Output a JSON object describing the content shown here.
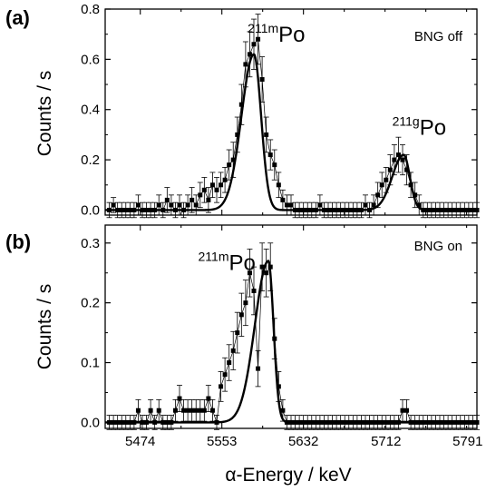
{
  "chart_data": [
    {
      "type": "line",
      "panel_label": "(a)",
      "status_label": "BNG off",
      "ylabel": "Counts / s",
      "xlim": [
        5440,
        5800
      ],
      "ylim": [
        -0.02,
        0.8
      ],
      "yticks": [
        "0.0",
        "0.2",
        "0.4",
        "0.6",
        "0.8"
      ],
      "grid": false,
      "peak_annotations": [
        {
          "sup": "211m",
          "main": "Po",
          "x": 5578,
          "y": 0.67
        },
        {
          "sup": "211g",
          "main": "Po",
          "x": 5718,
          "y": 0.3
        }
      ],
      "series": [
        {
          "style": "data-with-error-bars",
          "error": 0.02,
          "x": [
            5444,
            5448,
            5452,
            5456,
            5460,
            5464,
            5468,
            5472,
            5476,
            5480,
            5484,
            5488,
            5492,
            5496,
            5500,
            5504,
            5508,
            5512,
            5516,
            5520,
            5524,
            5528,
            5532,
            5536,
            5540,
            5544,
            5548,
            5552,
            5556,
            5560,
            5564,
            5568,
            5572,
            5576,
            5580,
            5584,
            5588,
            5592,
            5596,
            5600,
            5604,
            5608,
            5612,
            5616,
            5620,
            5624,
            5628,
            5632,
            5636,
            5640,
            5644,
            5648,
            5652,
            5656,
            5660,
            5664,
            5668,
            5672,
            5676,
            5680,
            5684,
            5688,
            5692,
            5696,
            5700,
            5704,
            5708,
            5712,
            5716,
            5720,
            5724,
            5728,
            5732,
            5736,
            5740,
            5744,
            5748,
            5752,
            5756,
            5760,
            5764,
            5768,
            5772,
            5776,
            5780,
            5784,
            5788,
            5792,
            5796,
            5800
          ],
          "y": [
            0.0,
            0.02,
            0.0,
            0.0,
            0.0,
            0.0,
            0.0,
            0.02,
            0.0,
            0.0,
            0.0,
            0.0,
            0.02,
            0.0,
            0.04,
            0.02,
            0.0,
            0.02,
            0.0,
            0.02,
            0.04,
            0.02,
            0.06,
            0.08,
            0.04,
            0.1,
            0.08,
            0.1,
            0.12,
            0.18,
            0.2,
            0.3,
            0.42,
            0.58,
            0.62,
            0.66,
            0.68,
            0.52,
            0.3,
            0.22,
            0.18,
            0.1,
            0.04,
            0.02,
            0.02,
            0.0,
            0.0,
            0.0,
            0.0,
            0.0,
            0.0,
            0.02,
            0.0,
            0.0,
            0.0,
            0.0,
            0.0,
            0.0,
            0.0,
            0.0,
            0.0,
            0.0,
            0.02,
            0.0,
            0.02,
            0.06,
            0.1,
            0.12,
            0.16,
            0.2,
            0.22,
            0.2,
            0.16,
            0.1,
            0.06,
            0.02,
            0.0,
            0.0,
            0.0,
            0.0,
            0.0,
            0.0,
            0.0,
            0.0,
            0.0,
            0.0,
            0.0,
            0.0,
            0.0,
            0.0
          ],
          "error_sizes": [
            0.03,
            0.03,
            0.03,
            0.03,
            0.03,
            0.03,
            0.03,
            0.04,
            0.03,
            0.03,
            0.03,
            0.03,
            0.04,
            0.03,
            0.05,
            0.04,
            0.03,
            0.04,
            0.03,
            0.04,
            0.05,
            0.04,
            0.05,
            0.05,
            0.05,
            0.05,
            0.05,
            0.05,
            0.05,
            0.06,
            0.07,
            0.07,
            0.08,
            0.09,
            0.09,
            0.1,
            0.1,
            0.09,
            0.07,
            0.06,
            0.06,
            0.05,
            0.04,
            0.04,
            0.04,
            0.03,
            0.03,
            0.03,
            0.03,
            0.03,
            0.03,
            0.04,
            0.03,
            0.03,
            0.03,
            0.03,
            0.03,
            0.03,
            0.03,
            0.03,
            0.03,
            0.03,
            0.04,
            0.03,
            0.04,
            0.05,
            0.05,
            0.05,
            0.06,
            0.06,
            0.07,
            0.06,
            0.06,
            0.05,
            0.05,
            0.04,
            0.03,
            0.03,
            0.03,
            0.03,
            0.03,
            0.03,
            0.03,
            0.03,
            0.03,
            0.03,
            0.03,
            0.03,
            0.03,
            0.03
          ]
        },
        {
          "style": "fit",
          "peaks": [
            {
              "center": 5584,
              "amplitude": 0.62,
              "sigma_left": 12,
              "sigma_right": 7
            },
            {
              "center": 5729,
              "amplitude": 0.22,
              "sigma_left": 11,
              "sigma_right": 6
            }
          ]
        }
      ]
    },
    {
      "type": "line",
      "panel_label": "(b)",
      "status_label": "BNG on",
      "ylabel": "Counts / s",
      "xlabel": "α-Energy / keV",
      "xlim": [
        5440,
        5800
      ],
      "ylim": [
        -0.01,
        0.33
      ],
      "xticks": [
        "5474",
        "5553",
        "5632",
        "5712",
        "5791"
      ],
      "yticks": [
        "0.0",
        "0.1",
        "0.2",
        "0.3"
      ],
      "grid": false,
      "peak_annotations": [
        {
          "sup": "211m",
          "main": "Po",
          "x": 5530,
          "y": 0.255
        }
      ],
      "series": [
        {
          "style": "data-with-error-bars",
          "x": [
            5444,
            5448,
            5452,
            5456,
            5460,
            5464,
            5468,
            5472,
            5476,
            5480,
            5484,
            5488,
            5492,
            5496,
            5500,
            5504,
            5508,
            5512,
            5516,
            5520,
            5524,
            5528,
            5532,
            5536,
            5540,
            5544,
            5548,
            5552,
            5556,
            5560,
            5564,
            5568,
            5572,
            5576,
            5580,
            5584,
            5588,
            5592,
            5596,
            5600,
            5604,
            5608,
            5612,
            5616,
            5620,
            5624,
            5628,
            5632,
            5636,
            5640,
            5644,
            5648,
            5652,
            5656,
            5660,
            5664,
            5668,
            5672,
            5676,
            5680,
            5684,
            5688,
            5692,
            5696,
            5700,
            5704,
            5708,
            5712,
            5716,
            5720,
            5724,
            5728,
            5732,
            5736,
            5740,
            5744,
            5748,
            5752,
            5756,
            5760,
            5764,
            5768,
            5772,
            5776,
            5780,
            5784,
            5788,
            5792,
            5796,
            5800
          ],
          "y": [
            0.0,
            0.0,
            0.0,
            0.0,
            0.0,
            0.0,
            0.0,
            0.02,
            0.0,
            0.0,
            0.02,
            0.0,
            0.02,
            0.0,
            0.0,
            0.0,
            0.02,
            0.04,
            0.02,
            0.02,
            0.02,
            0.02,
            0.02,
            0.02,
            0.04,
            0.02,
            0.0,
            0.06,
            0.08,
            0.1,
            0.12,
            0.15,
            0.18,
            0.2,
            0.25,
            0.22,
            0.09,
            0.26,
            0.25,
            0.26,
            0.14,
            0.06,
            0.02,
            0.0,
            0.0,
            0.0,
            0.0,
            0.0,
            0.0,
            0.0,
            0.0,
            0.0,
            0.0,
            0.0,
            0.0,
            0.0,
            0.0,
            0.0,
            0.0,
            0.0,
            0.0,
            0.0,
            0.0,
            0.0,
            0.0,
            0.0,
            0.0,
            0.0,
            0.0,
            0.0,
            0.0,
            0.02,
            0.02,
            0.0,
            0.0,
            0.0,
            0.0,
            0.0,
            0.0,
            0.0,
            0.0,
            0.0,
            0.0,
            0.0,
            0.0,
            0.0,
            0.0,
            0.0,
            0.0,
            0.0
          ],
          "error_sizes": [
            0.012,
            0.012,
            0.012,
            0.012,
            0.012,
            0.012,
            0.012,
            0.018,
            0.012,
            0.012,
            0.018,
            0.012,
            0.018,
            0.012,
            0.012,
            0.012,
            0.018,
            0.022,
            0.018,
            0.018,
            0.018,
            0.018,
            0.018,
            0.018,
            0.022,
            0.018,
            0.012,
            0.025,
            0.028,
            0.03,
            0.032,
            0.034,
            0.036,
            0.038,
            0.04,
            0.04,
            0.03,
            0.04,
            0.04,
            0.04,
            0.034,
            0.025,
            0.018,
            0.012,
            0.012,
            0.012,
            0.012,
            0.012,
            0.012,
            0.012,
            0.012,
            0.012,
            0.012,
            0.012,
            0.012,
            0.012,
            0.012,
            0.012,
            0.012,
            0.012,
            0.012,
            0.012,
            0.012,
            0.012,
            0.012,
            0.012,
            0.012,
            0.012,
            0.012,
            0.012,
            0.012,
            0.018,
            0.018,
            0.012,
            0.012,
            0.012,
            0.012,
            0.012,
            0.012,
            0.012,
            0.012,
            0.012,
            0.012,
            0.012,
            0.012,
            0.012,
            0.012,
            0.012,
            0.012,
            0.012
          ]
        },
        {
          "style": "fit",
          "peaks": [
            {
              "center": 5598,
              "amplitude": 0.27,
              "sigma_left": 13,
              "sigma_right": 5
            }
          ]
        }
      ]
    }
  ]
}
